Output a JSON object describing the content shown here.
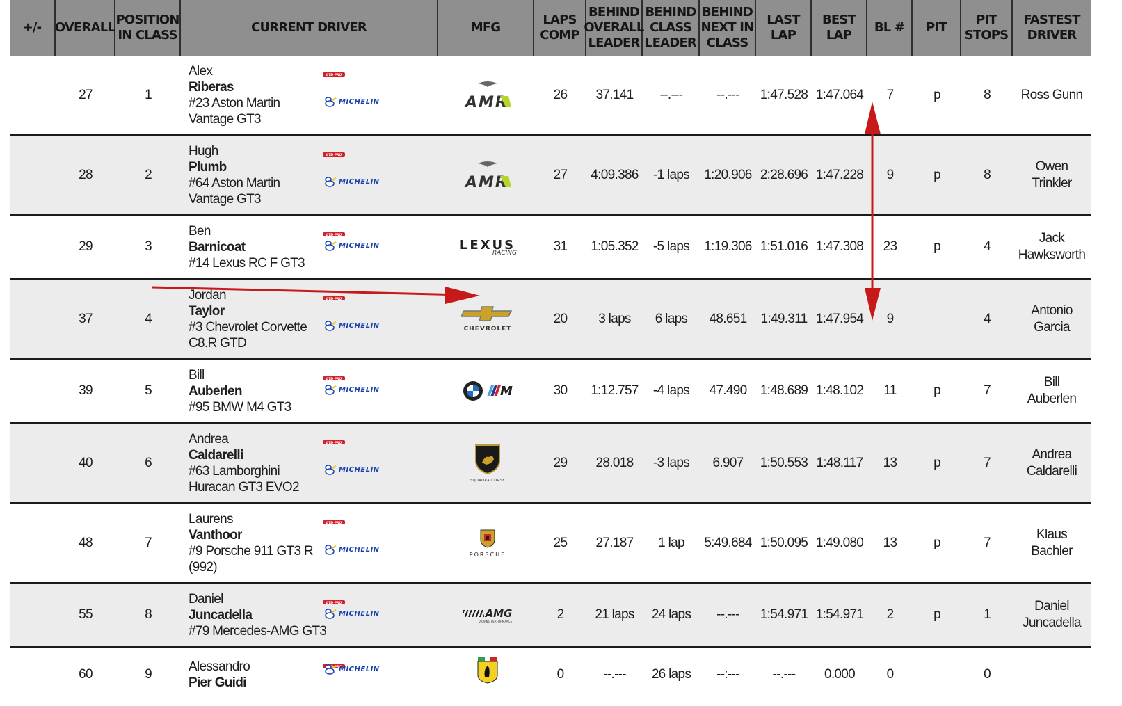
{
  "headers": [
    "+/-",
    "OVERALL",
    "POSITION\nIN CLASS",
    "CURRENT DRIVER",
    "MFG",
    "LAPS\nCOMP",
    "BEHIND\nOVERALL\nLEADER",
    "BEHIND\nCLASS\nLEADER",
    "BEHIND\nNEXT IN\nCLASS",
    "LAST\nLAP",
    "BEST\nLAP",
    "BL #",
    "PIT",
    "PIT\nSTOPS",
    "FASTEST\nDRIVER"
  ],
  "badge_text": {
    "gto": "GTD PRO",
    "michelin": "MICHELIN"
  },
  "mfg_text": {
    "amr": "AMR",
    "lexus": "LEXUS",
    "lexus_sub": "RACING",
    "chevrolet": "CHEVROLET",
    "bmw_m": "M",
    "lambo_sub": "SQUADRA CORSE",
    "porsche": "PORSCHE",
    "amg": "AMG",
    "amg_sub": "DRIVING PERFORMANCE"
  },
  "rows": [
    {
      "overall": "27",
      "pos": "1",
      "first": "Alex",
      "last": "Riberas",
      "car": "#23 Aston Martin Vantage GT3",
      "mfg": "amr",
      "laps": "26",
      "behind_overall": "37.141",
      "behind_class": "--.---",
      "behind_next": "--.---",
      "last_lap": "1:47.528",
      "best_lap": "1:47.064",
      "bl": "7",
      "pit": "p",
      "stops": "8",
      "fastest": "Ross Gunn"
    },
    {
      "overall": "28",
      "pos": "2",
      "first": "Hugh",
      "last": "Plumb",
      "car": "#64 Aston Martin Vantage GT3",
      "mfg": "amr",
      "laps": "27",
      "behind_overall": "4:09.386",
      "behind_class": "-1 laps",
      "behind_next": "1:20.906",
      "last_lap": "2:28.696",
      "best_lap": "1:47.228",
      "bl": "9",
      "pit": "p",
      "stops": "8",
      "fastest": "Owen\nTrinkler"
    },
    {
      "overall": "29",
      "pos": "3",
      "first": "Ben",
      "last": "Barnicoat",
      "car": "#14 Lexus RC F GT3",
      "mfg": "lexus",
      "laps": "31",
      "behind_overall": "1:05.352",
      "behind_class": "-5 laps",
      "behind_next": "1:19.306",
      "last_lap": "1:51.016",
      "best_lap": "1:47.308",
      "bl": "23",
      "pit": "p",
      "stops": "4",
      "fastest": "Jack\nHawksworth"
    },
    {
      "overall": "37",
      "pos": "4",
      "first": "Jordan",
      "last": "Taylor",
      "car": "#3 Chevrolet Corvette C8.R GTD",
      "mfg": "chevrolet",
      "laps": "20",
      "behind_overall": "3 laps",
      "behind_class": "6 laps",
      "behind_next": "48.651",
      "last_lap": "1:49.311",
      "best_lap": "1:47.954",
      "bl": "9",
      "pit": "",
      "stops": "4",
      "fastest": "Antonio\nGarcia"
    },
    {
      "overall": "39",
      "pos": "5",
      "first": "Bill",
      "last": "Auberlen",
      "car": "#95 BMW M4 GT3",
      "mfg": "bmw",
      "laps": "30",
      "behind_overall": "1:12.757",
      "behind_class": "-4 laps",
      "behind_next": "47.490",
      "last_lap": "1:48.689",
      "best_lap": "1:48.102",
      "bl": "11",
      "pit": "p",
      "stops": "7",
      "fastest": "Bill\nAuberlen"
    },
    {
      "overall": "40",
      "pos": "6",
      "first": "Andrea",
      "last": "Caldarelli",
      "car": "#63 Lamborghini Huracan GT3 EVO2",
      "mfg": "lamborghini",
      "laps": "29",
      "behind_overall": "28.018",
      "behind_class": "-3 laps",
      "behind_next": "6.907",
      "last_lap": "1:50.553",
      "best_lap": "1:48.117",
      "bl": "13",
      "pit": "p",
      "stops": "7",
      "fastest": "Andrea\nCaldarelli"
    },
    {
      "overall": "48",
      "pos": "7",
      "first": "Laurens",
      "last": "Vanthoor",
      "car": "#9 Porsche 911 GT3 R (992)",
      "mfg": "porsche",
      "laps": "25",
      "behind_overall": "27.187",
      "behind_class": "1 lap",
      "behind_next": "5:49.684",
      "last_lap": "1:50.095",
      "best_lap": "1:49.080",
      "bl": "13",
      "pit": "p",
      "stops": "7",
      "fastest": "Klaus\nBachler"
    },
    {
      "overall": "55",
      "pos": "8",
      "first": "Daniel",
      "last": "Juncadella",
      "car": "#79 Mercedes-AMG GT3",
      "mfg": "amg",
      "laps": "2",
      "behind_overall": "21 laps",
      "behind_class": "24 laps",
      "behind_next": "--.---",
      "last_lap": "1:54.971",
      "best_lap": "1:54.971",
      "bl": "2",
      "pit": "p",
      "stops": "1",
      "fastest": "Daniel\nJuncadella"
    },
    {
      "overall": "60",
      "pos": "9",
      "first": "Alessandro",
      "last": "Pier Guidi",
      "car": "",
      "mfg": "ferrari",
      "laps": "0",
      "behind_overall": "--.---",
      "behind_class": "26 laps",
      "behind_next": "--:---",
      "last_lap": "--.---",
      "best_lap": "0.000",
      "bl": "0",
      "pit": "",
      "stops": "0",
      "fastest": ""
    }
  ],
  "colors": {
    "header_bg": "#8f8f8f",
    "row_alt": "#ececec",
    "arrow": "#c8191a",
    "michelin_blue": "#1a3fb0",
    "gto_red": "#d0242a"
  }
}
